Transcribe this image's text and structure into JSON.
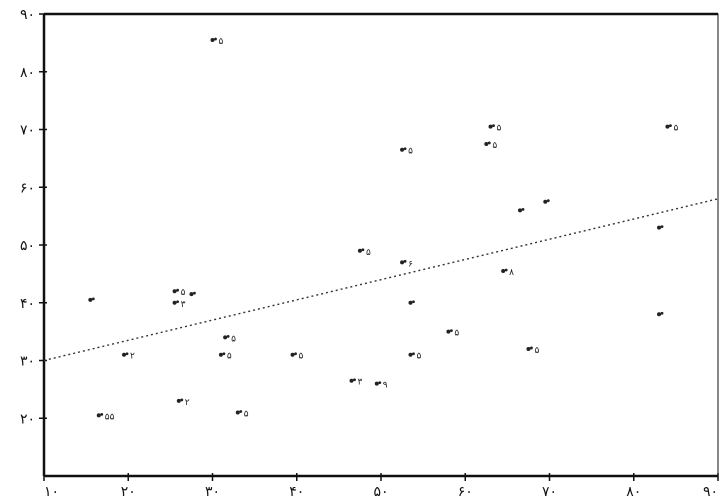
{
  "chart_data": {
    "type": "scatter",
    "title": "",
    "xlabel": "",
    "ylabel": "",
    "xlim": [
      10,
      90
    ],
    "ylim": [
      10,
      90
    ],
    "x_ticks": [
      10,
      20,
      30,
      40,
      50,
      60,
      70,
      80,
      90
    ],
    "y_ticks": [
      20,
      30,
      40,
      50,
      60,
      70,
      80,
      90
    ],
    "x_tick_labels": [
      "۱۰",
      "۲۰",
      "۳۰",
      "۴۰",
      "۵۰",
      "۶۰",
      "۷۰",
      "۸۰",
      "۹۰"
    ],
    "y_tick_labels": [
      "۲۰",
      "۳۰",
      "۴۰",
      "۵۰",
      "۶۰",
      "۷۰",
      "۸۰",
      "۹۰"
    ],
    "grid": false,
    "points": [
      {
        "x": 15.5,
        "y": 40.5,
        "label": ""
      },
      {
        "x": 16.5,
        "y": 20.5,
        "label": "۵۵"
      },
      {
        "x": 19.5,
        "y": 31.0,
        "label": "۲"
      },
      {
        "x": 26.0,
        "y": 23.0,
        "label": "۲"
      },
      {
        "x": 25.5,
        "y": 40.0,
        "label": "۳"
      },
      {
        "x": 25.5,
        "y": 42.0,
        "label": "۵"
      },
      {
        "x": 27.5,
        "y": 41.5,
        "label": ""
      },
      {
        "x": 30.0,
        "y": 85.5,
        "label": "۵"
      },
      {
        "x": 31.0,
        "y": 31.0,
        "label": "۵"
      },
      {
        "x": 31.5,
        "y": 34.0,
        "label": "۵"
      },
      {
        "x": 33.0,
        "y": 21.0,
        "label": "۵"
      },
      {
        "x": 39.5,
        "y": 31.0,
        "label": "۵"
      },
      {
        "x": 46.5,
        "y": 26.5,
        "label": "۳"
      },
      {
        "x": 47.5,
        "y": 49.0,
        "label": "۵"
      },
      {
        "x": 49.5,
        "y": 26.0,
        "label": "۹"
      },
      {
        "x": 52.5,
        "y": 47.0,
        "label": "۶"
      },
      {
        "x": 52.5,
        "y": 66.5,
        "label": "۵"
      },
      {
        "x": 53.5,
        "y": 40.0,
        "label": ""
      },
      {
        "x": 53.5,
        "y": 31.0,
        "label": "۵"
      },
      {
        "x": 58.0,
        "y": 35.0,
        "label": "۵"
      },
      {
        "x": 62.5,
        "y": 67.5,
        "label": "۵"
      },
      {
        "x": 63.0,
        "y": 70.5,
        "label": "۵"
      },
      {
        "x": 64.5,
        "y": 45.5,
        "label": "۸"
      },
      {
        "x": 66.5,
        "y": 56.0,
        "label": ""
      },
      {
        "x": 67.5,
        "y": 32.0,
        "label": "۵"
      },
      {
        "x": 69.5,
        "y": 57.5,
        "label": ""
      },
      {
        "x": 83.0,
        "y": 53.0,
        "label": ""
      },
      {
        "x": 83.0,
        "y": 38.0,
        "label": ""
      },
      {
        "x": 84.0,
        "y": 70.5,
        "label": "۵"
      }
    ],
    "trendline": {
      "x": [
        10,
        90
      ],
      "y": [
        30,
        58
      ]
    },
    "colors": {
      "points": "#222222",
      "trendline": "#333333",
      "axes": "#111111"
    }
  }
}
